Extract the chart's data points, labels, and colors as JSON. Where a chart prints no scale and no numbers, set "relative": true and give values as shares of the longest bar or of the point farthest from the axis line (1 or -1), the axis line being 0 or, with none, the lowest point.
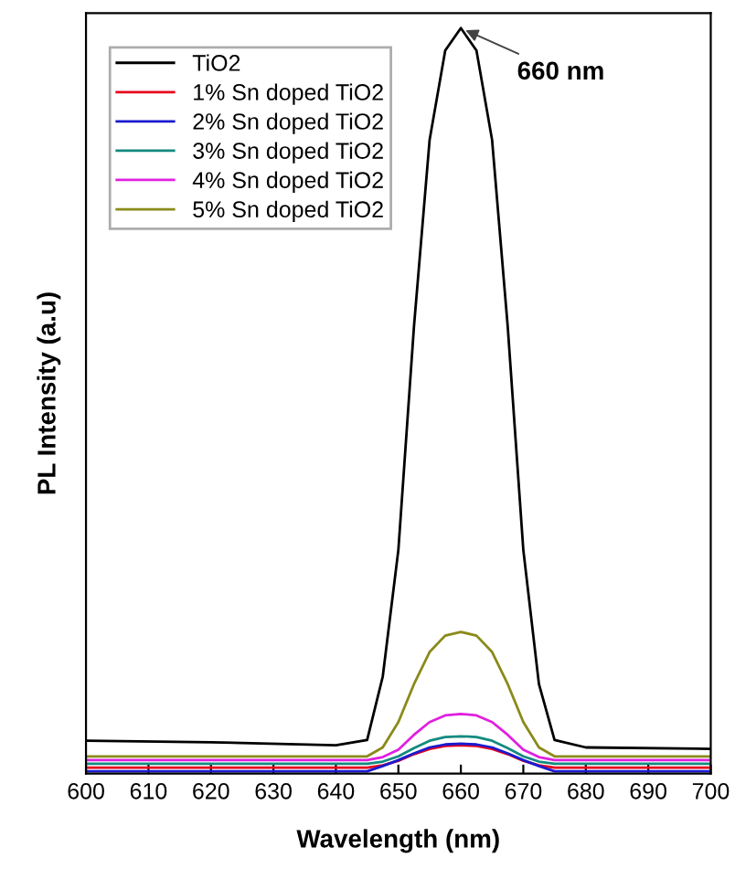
{
  "chart_data": {
    "type": "line",
    "relative": true,
    "xlabel": "Wavelength (nm)",
    "ylabel": "PL Intensity (a.u)",
    "x": [
      600,
      620,
      640,
      645,
      647.5,
      650,
      652.5,
      655,
      657.5,
      660,
      662.5,
      665,
      667.5,
      670,
      672.5,
      675,
      680,
      700
    ],
    "xlim": [
      600,
      700
    ],
    "xticks": [
      600,
      610,
      620,
      630,
      640,
      650,
      660,
      670,
      680,
      690,
      700
    ],
    "legend": "top left",
    "grid": false,
    "line_style": "solid",
    "marker": "none",
    "annotations": [
      {
        "text": "660 nm",
        "x": 660,
        "y": 1
      }
    ],
    "series": [
      {
        "name": "TiO2",
        "color": "#000000",
        "values": [
          0.044,
          0.042,
          0.038,
          0.045,
          0.13,
          0.3,
          0.6,
          0.85,
          0.97,
          1,
          0.97,
          0.85,
          0.6,
          0.3,
          0.12,
          0.045,
          0.035,
          0.033
        ]
      },
      {
        "name": "1% Sn doped TiO2",
        "color": "#e8001c",
        "values": [
          0.008,
          0.008,
          0.008,
          0.008,
          0.011,
          0.017,
          0.026,
          0.033,
          0.037,
          0.038,
          0.037,
          0.033,
          0.026,
          0.017,
          0.011,
          0.008,
          0.008,
          0.008
        ]
      },
      {
        "name": "2% Sn doped TiO2",
        "color": "#1a1ad0",
        "values": [
          0.003,
          0.003,
          0.003,
          0.003,
          0.01,
          0.018,
          0.027,
          0.035,
          0.039,
          0.04,
          0.039,
          0.035,
          0.027,
          0.018,
          0.01,
          0.003,
          0.003,
          0.003
        ]
      },
      {
        "name": "3% Sn doped TiO2",
        "color": "#138a80",
        "values": [
          0.013,
          0.013,
          0.013,
          0.013,
          0.016,
          0.023,
          0.034,
          0.044,
          0.049,
          0.05,
          0.049,
          0.044,
          0.034,
          0.023,
          0.016,
          0.013,
          0.013,
          0.013
        ]
      },
      {
        "name": "4% Sn doped TiO2",
        "color": "#e020e0",
        "values": [
          0.018,
          0.018,
          0.018,
          0.018,
          0.022,
          0.032,
          0.052,
          0.069,
          0.078,
          0.08,
          0.078,
          0.069,
          0.052,
          0.032,
          0.022,
          0.018,
          0.018,
          0.018
        ]
      },
      {
        "name": "5% Sn doped TiO2",
        "color": "#8a8a1a",
        "values": [
          0.023,
          0.023,
          0.023,
          0.023,
          0.035,
          0.069,
          0.12,
          0.163,
          0.185,
          0.19,
          0.185,
          0.163,
          0.12,
          0.069,
          0.035,
          0.023,
          0.023,
          0.023
        ]
      }
    ]
  }
}
